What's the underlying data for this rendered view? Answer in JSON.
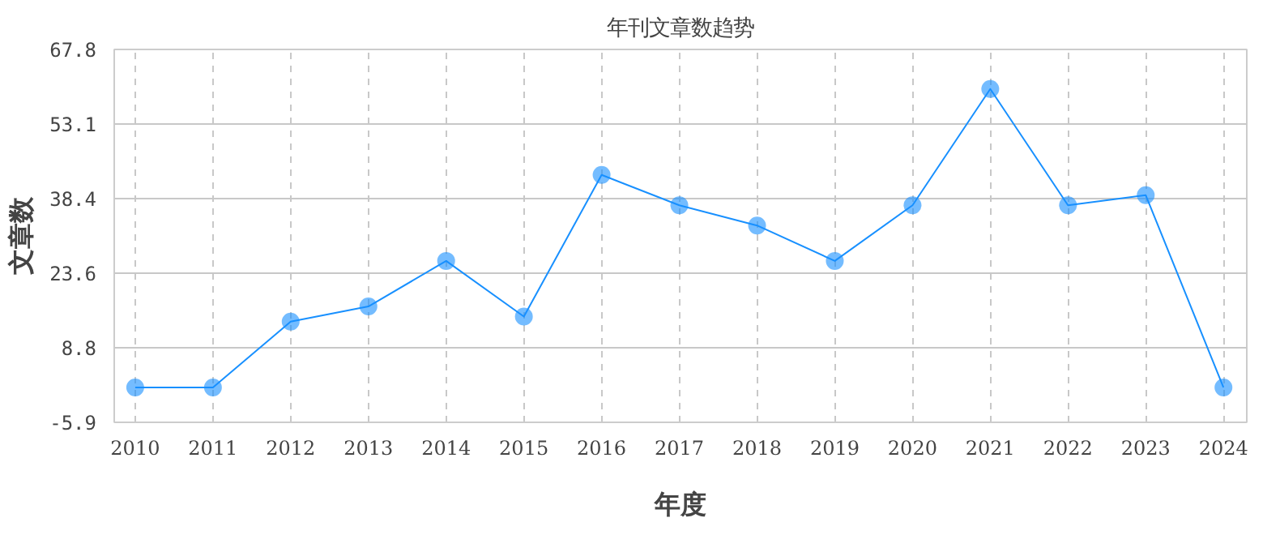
{
  "chart_data": {
    "type": "line",
    "title": "年刊文章数趋势",
    "xlabel": "年度",
    "ylabel": "文章数",
    "categories": [
      "2010",
      "2011",
      "2012",
      "2013",
      "2014",
      "2015",
      "2016",
      "2017",
      "2018",
      "2019",
      "2020",
      "2021",
      "2022",
      "2023",
      "2024"
    ],
    "series": [
      {
        "color": "#1890ff",
        "values": [
          1,
          1,
          14,
          17,
          26,
          15,
          43,
          37,
          33,
          26,
          37,
          60,
          37,
          39,
          1
        ]
      }
    ],
    "ylim": [
      -5.9,
      67.8
    ],
    "yticks": [
      -5.9,
      8.8,
      23.6,
      38.4,
      53.1,
      67.8
    ],
    "grid": true,
    "marker": "circle",
    "line_style": "solid"
  }
}
